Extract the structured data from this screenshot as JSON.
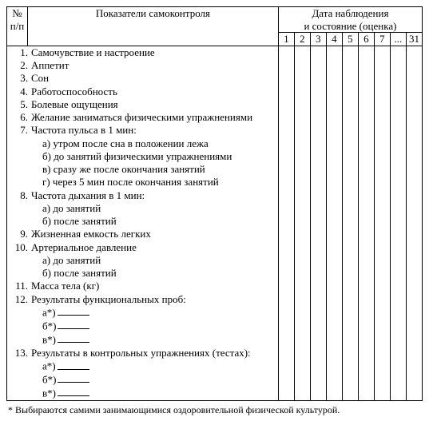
{
  "header": {
    "col_num": "№\nп/п",
    "col_indicators": "Показатели самоконтроля",
    "col_dates_title": "Дата наблюдения\nи состояние (оценка)",
    "dates": [
      "1",
      "2",
      "3",
      "4",
      "5",
      "6",
      "7",
      "...",
      "31"
    ]
  },
  "rows": [
    {
      "n": "1.",
      "t": "Самочувствие и настроение"
    },
    {
      "n": "2.",
      "t": "Аппетит"
    },
    {
      "n": "3.",
      "t": "Сон"
    },
    {
      "n": "4.",
      "t": "Работоспособность"
    },
    {
      "n": "5.",
      "t": "Болевые ощущения"
    },
    {
      "n": "6.",
      "t": "Желание заниматься физическими упражнениями"
    },
    {
      "n": "7.",
      "t": "Частота пульса в 1 мин:"
    },
    {
      "sub": true,
      "t": "а) утром после сна в положении лежа"
    },
    {
      "sub": true,
      "t": "б) до занятий физическими упражнениями"
    },
    {
      "sub": true,
      "t": "в) сразу же после окончания занятий"
    },
    {
      "sub": true,
      "t": "г) через 5 мин после окончания занятий"
    },
    {
      "n": "8.",
      "t": "Частота дыхания в 1 мин:"
    },
    {
      "sub": true,
      "t": "а) до занятий"
    },
    {
      "sub": true,
      "t": "б) после занятий"
    },
    {
      "n": "9.",
      "t": "Жизненная емкость легких"
    },
    {
      "n": "10.",
      "t": "Артериальное давление"
    },
    {
      "sub": true,
      "t": "а) до занятий"
    },
    {
      "sub": true,
      "t": "б) после занятий"
    },
    {
      "n": "11.",
      "t": "Масса тела (кг)"
    },
    {
      "n": "12.",
      "t": "Результаты функциональных проб:"
    },
    {
      "sub": true,
      "t": "а*)",
      "blank": true
    },
    {
      "sub": true,
      "t": "б*)",
      "blank": true
    },
    {
      "sub": true,
      "t": "в*)",
      "blank": true
    },
    {
      "n": "13.",
      "t": "Результаты в контрольных упражнениях (тестах):"
    },
    {
      "sub": true,
      "t": "а*)",
      "blank": true
    },
    {
      "sub": true,
      "t": "б*)",
      "blank": true
    },
    {
      "sub": true,
      "t": "в*)",
      "blank": true
    }
  ],
  "footnote": "* Выбираются самими занимающимися оздоровительной физической культурой."
}
